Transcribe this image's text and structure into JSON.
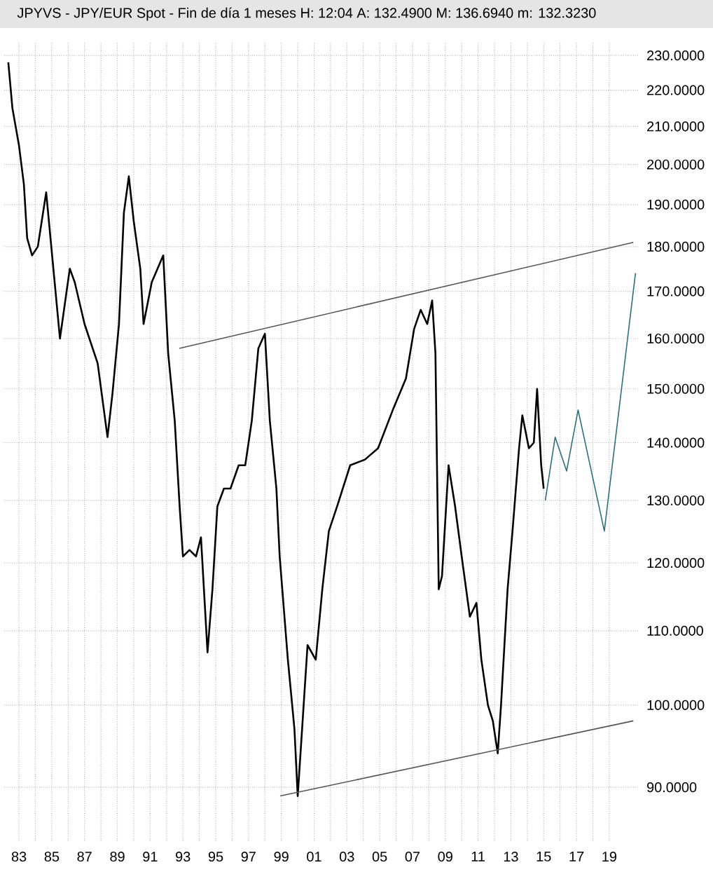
{
  "chart_data": {
    "type": "line",
    "title": "JPYVS - JPY/EUR Spot - Fin de día 1 meses H: 12:04 A: 132.4900 M: 136.6940 m: 132.3230",
    "log": "y",
    "grid": true,
    "xlim": [
      1982.1,
      2020.8
    ],
    "ylim": [
      84,
      234
    ],
    "xticks": [
      {
        "value": 1983,
        "label": "83"
      },
      {
        "value": 1984,
        "label": null
      },
      {
        "value": 1985,
        "label": "85"
      },
      {
        "value": 1986,
        "label": null
      },
      {
        "value": 1987,
        "label": "87"
      },
      {
        "value": 1988,
        "label": null
      },
      {
        "value": 1989,
        "label": "89"
      },
      {
        "value": 1990,
        "label": null
      },
      {
        "value": 1991,
        "label": "91"
      },
      {
        "value": 1992,
        "label": null
      },
      {
        "value": 1993,
        "label": "93"
      },
      {
        "value": 1994,
        "label": null
      },
      {
        "value": 1995,
        "label": "95"
      },
      {
        "value": 1996,
        "label": null
      },
      {
        "value": 1997,
        "label": "97"
      },
      {
        "value": 1998,
        "label": null
      },
      {
        "value": 1999,
        "label": "99"
      },
      {
        "value": 2000,
        "label": null
      },
      {
        "value": 2001,
        "label": "01"
      },
      {
        "value": 2002,
        "label": null
      },
      {
        "value": 2003,
        "label": "03"
      },
      {
        "value": 2004,
        "label": null
      },
      {
        "value": 2005,
        "label": "05"
      },
      {
        "value": 2006,
        "label": null
      },
      {
        "value": 2007,
        "label": "07"
      },
      {
        "value": 2008,
        "label": null
      },
      {
        "value": 2009,
        "label": "09"
      },
      {
        "value": 2010,
        "label": null
      },
      {
        "value": 2011,
        "label": "11"
      },
      {
        "value": 2012,
        "label": null
      },
      {
        "value": 2013,
        "label": "13"
      },
      {
        "value": 2014,
        "label": null
      },
      {
        "value": 2015,
        "label": "15"
      },
      {
        "value": 2016,
        "label": null
      },
      {
        "value": 2017,
        "label": "17"
      },
      {
        "value": 2018,
        "label": null
      },
      {
        "value": 2019,
        "label": "19"
      }
    ],
    "yticks": [
      {
        "value": 90,
        "label": "90.0000"
      },
      {
        "value": 100,
        "label": "100.0000"
      },
      {
        "value": 110,
        "label": "110.0000"
      },
      {
        "value": 120,
        "label": "120.0000"
      },
      {
        "value": 130,
        "label": "130.0000"
      },
      {
        "value": 140,
        "label": "140.0000"
      },
      {
        "value": 150,
        "label": "150.0000"
      },
      {
        "value": 160,
        "label": "160.0000"
      },
      {
        "value": 170,
        "label": "170.0000"
      },
      {
        "value": 180,
        "label": "180.0000"
      },
      {
        "value": 190,
        "label": "190.0000"
      },
      {
        "value": 200,
        "label": "200.0000"
      },
      {
        "value": 210,
        "label": "210.0000"
      },
      {
        "value": 220,
        "label": "220.0000"
      },
      {
        "value": 230,
        "label": "230.0000"
      }
    ],
    "series": [
      {
        "color": "#000000",
        "x": [
          1982.35,
          1982.6,
          1983.0,
          1983.3,
          1983.5,
          1983.8,
          1984.15,
          1984.66,
          1985.5,
          1986.1,
          1986.4,
          1987.0,
          1987.8,
          1988.4,
          1988.7,
          1989.1,
          1989.4,
          1989.7,
          1990.0,
          1990.4,
          1990.6,
          1991.1,
          1991.8,
          1992.1,
          1992.5,
          1992.8,
          1993.0,
          1993.4,
          1993.8,
          1994.1,
          1994.5,
          1994.8,
          1995.1,
          1995.5,
          1995.9,
          1996.4,
          1996.8,
          1997.2,
          1997.6,
          1998.0,
          1998.3,
          1998.7,
          1998.9,
          1999.4,
          1999.8,
          2000.0,
          2000.3,
          2000.6,
          2001.1,
          2001.5,
          2001.9,
          2002.4,
          2003.2,
          2004.1,
          2004.9,
          2005.8,
          2006.6,
          2007.1,
          2007.5,
          2007.9,
          2008.2,
          2008.4,
          2008.6,
          2008.8,
          2009.2,
          2009.6,
          2010.0,
          2010.5,
          2010.9,
          2011.2,
          2011.6,
          2011.9,
          2012.2,
          2012.4,
          2012.8,
          2013.1,
          2013.5,
          2013.7,
          2014.1,
          2014.4,
          2014.6,
          2014.85,
          2015.0
        ],
        "values": [
          228,
          215,
          205,
          195,
          182,
          178,
          180,
          193,
          160,
          175,
          172,
          163,
          155,
          141,
          149,
          163,
          188,
          197,
          186,
          175,
          163,
          172,
          178,
          157,
          144,
          129,
          121,
          122,
          121,
          124,
          107,
          116,
          129,
          132,
          132,
          136,
          136,
          144,
          158,
          161,
          144,
          132,
          121,
          106,
          97,
          89,
          98,
          108,
          106,
          116,
          125,
          129,
          136,
          137,
          139,
          146,
          152,
          162,
          166,
          163,
          168,
          157,
          116,
          118,
          136,
          129,
          121,
          112,
          114,
          106,
          100,
          98,
          94,
          100,
          116,
          125,
          139,
          145,
          139,
          140,
          150,
          136,
          132
        ]
      },
      {
        "color": "#555555",
        "x": [
          1992.78,
          2020.47
        ],
        "values": [
          158,
          181
        ]
      },
      {
        "color": "#555555",
        "x": [
          1998.93,
          2020.47
        ],
        "values": [
          89,
          98
        ]
      },
      {
        "color": "#2f6f7a",
        "x": [
          2015.1,
          2015.7,
          2016.4,
          2017.1,
          2018.7,
          2020.6
        ],
        "values": [
          130,
          141,
          135,
          146,
          125,
          174
        ]
      }
    ]
  }
}
